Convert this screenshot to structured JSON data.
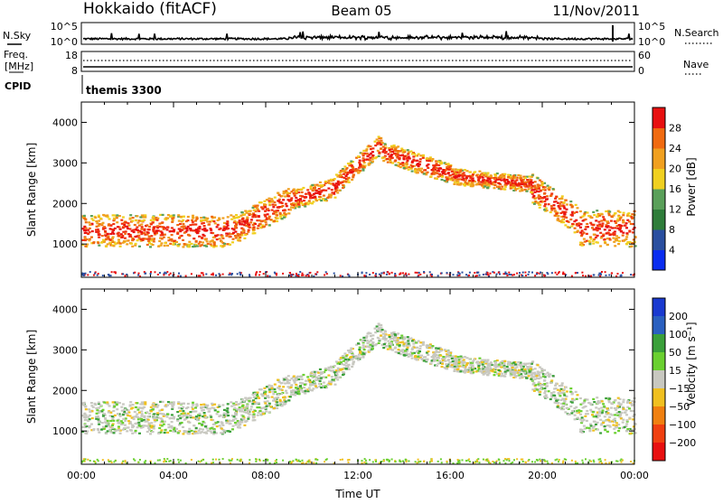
{
  "header": {
    "radar": "Hokkaido (fitACF)",
    "beam": "Beam 05",
    "date": "11/Nov/2011"
  },
  "strips": {
    "nsky_label": "N.Sky",
    "nsearch_label": "N.Search",
    "freq_label_1": "Freq.",
    "freq_label_2": "[MHz]",
    "nave_label": "Nave",
    "cpid_label": "CPID",
    "cpid_value": "themis 3300"
  },
  "chart_data": [
    {
      "type": "line",
      "title": "N.Sky / N.Search",
      "left_ticks": [
        "10^5",
        "10^0"
      ],
      "right_ticks": [
        "10^5",
        "10^0"
      ],
      "x_range": [
        0,
        24
      ]
    },
    {
      "type": "line",
      "title": "Freq. [MHz] / Nave",
      "left_ticks": [
        "18",
        "8"
      ],
      "right_ticks": [
        "60",
        "0"
      ],
      "x_range": [
        0,
        24
      ]
    },
    {
      "type": "heatmap",
      "ylabel": "Slant Range [km]",
      "yticks": [
        1000,
        2000,
        3000,
        4000
      ],
      "ylim": [
        180,
        4500
      ],
      "x_range": [
        0,
        24
      ],
      "colorbar": {
        "label": "Power [dB]",
        "ticks": [
          "4",
          "8",
          "12",
          "16",
          "20",
          "24",
          "28"
        ],
        "colors": [
          "#0a2df0",
          "#2a4fa0",
          "#2f7d3a",
          "#5aa05a",
          "#f0d020",
          "#f0a020",
          "#f06a10",
          "#e81010"
        ]
      }
    },
    {
      "type": "heatmap",
      "ylabel": "Slant Range [km]",
      "yticks": [
        1000,
        2000,
        3000,
        4000
      ],
      "ylim": [
        180,
        4500
      ],
      "x_range": [
        0,
        24
      ],
      "xlabel": "Time UT",
      "xticks": [
        "00:00",
        "04:00",
        "08:00",
        "12:00",
        "16:00",
        "20:00",
        "00:00"
      ],
      "colorbar": {
        "label": "Velocity [m s⁻¹]",
        "ticks": [
          "200",
          "100",
          "50",
          "15",
          "−15",
          "−50",
          "−100",
          "−200"
        ],
        "colors": [
          "#1a3ad0",
          "#2a60c0",
          "#3aa03a",
          "#6ad030",
          "#c8c8c0",
          "#f0c020",
          "#f08010",
          "#f04010",
          "#e81010"
        ]
      }
    }
  ]
}
